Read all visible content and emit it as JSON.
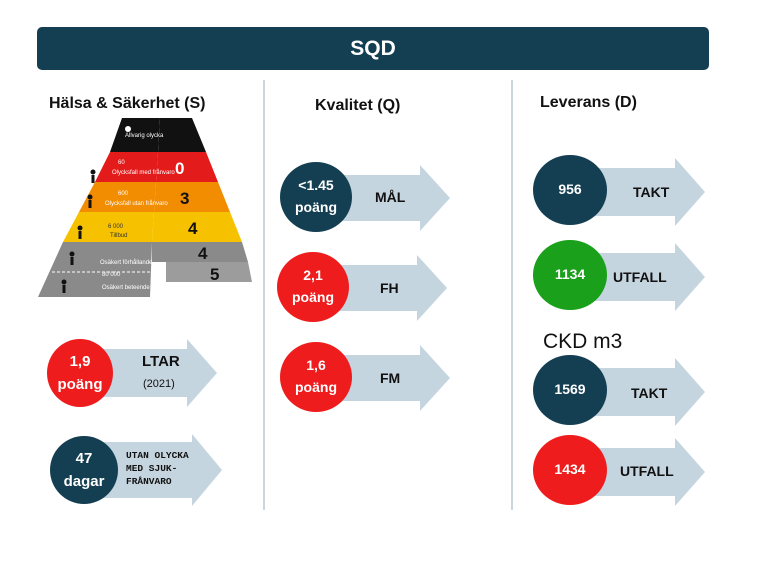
{
  "title": "SQD",
  "columns": {
    "s": {
      "heading": "Hälsa & Säkerhet (S)",
      "pyramid": {
        "levels": [
          {
            "label": "Allvarig olycka",
            "count": "",
            "color": "#111111"
          },
          {
            "label": "Olycksfall med frånvaro",
            "count": "60",
            "value": "0",
            "color": "#e31b1b"
          },
          {
            "label": "Olycksfall utan frånvaro",
            "count": "600",
            "value": "3",
            "color": "#f28c00"
          },
          {
            "label": "Tillbud",
            "count": "6 000",
            "value": "4",
            "color": "#f6c200"
          },
          {
            "label": "Osäkert förhållande",
            "count": "80 000",
            "value": "4",
            "color": "#7f7f7f"
          },
          {
            "label": "Osäkert beteende",
            "count": "",
            "value": "5",
            "color": "#8c8c8c"
          }
        ]
      },
      "ltar": {
        "value": "1,9",
        "unit": "poäng",
        "label": "LTAR",
        "sub": "(2021)"
      },
      "days": {
        "value": "47",
        "unit": "dagar",
        "line1": "UTAN OLYCKA",
        "line2": "MED SJUK-",
        "line3": "FRÅNVARO"
      }
    },
    "q": {
      "heading": "Kvalitet (Q)",
      "items": [
        {
          "value": "<1.45",
          "unit": "poäng",
          "label": "MÅL",
          "color": "navy"
        },
        {
          "value": "2,1",
          "unit": "poäng",
          "label": "FH",
          "color": "red"
        },
        {
          "value": "1,6",
          "unit": "poäng",
          "label": "FM",
          "color": "red"
        }
      ]
    },
    "d": {
      "heading": "Leverans (D)",
      "items": [
        {
          "value": "956",
          "label": "TAKT",
          "color": "navy"
        },
        {
          "value": "1134",
          "label": "UTFALL",
          "color": "green"
        }
      ],
      "ckd_heading": "CKD m3",
      "ckd_items": [
        {
          "value": "1569",
          "label": "TAKT",
          "color": "navy"
        },
        {
          "value": "1434",
          "label": "UTFALL",
          "color": "red"
        }
      ]
    }
  },
  "colors": {
    "navy": "#143f52",
    "red": "#ee1c1c",
    "green": "#1aa01a",
    "arrow": "#c5d5df"
  }
}
